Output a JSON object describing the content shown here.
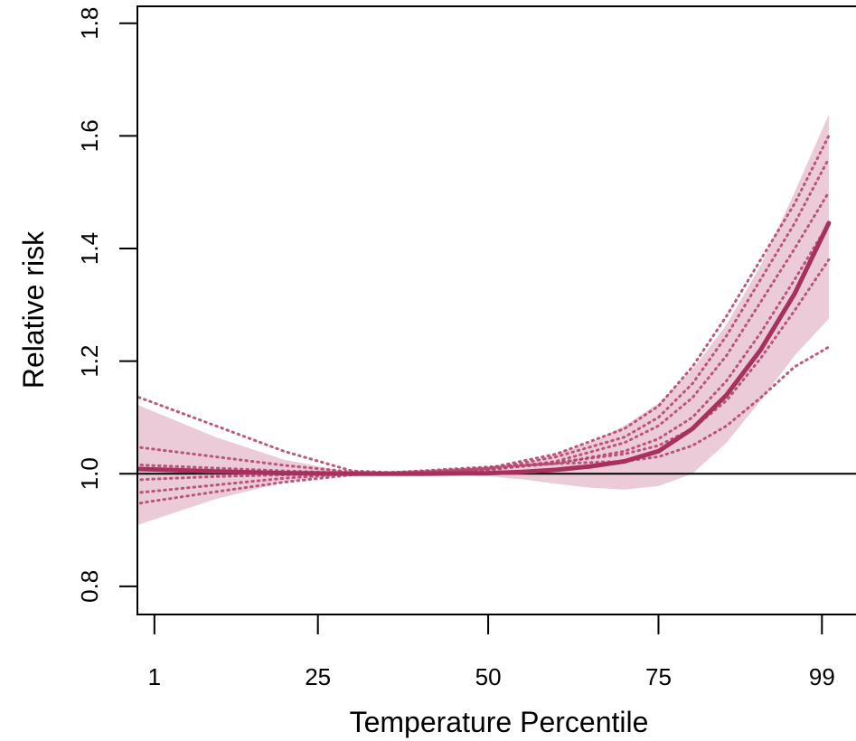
{
  "chart_data": {
    "type": "line",
    "title": "",
    "xlabel": "Temperature Percentile",
    "ylabel": "Relative risk",
    "xlim": [
      -1.5,
      104
    ],
    "ylim": [
      0.75,
      1.83
    ],
    "xticks": [
      1,
      25,
      50,
      75,
      99
    ],
    "yticks": [
      0.8,
      1.0,
      1.2,
      1.4,
      1.6,
      1.8
    ],
    "ytick_labels": [
      "0.8",
      "1.0",
      "1.2",
      "1.4",
      "1.6",
      "1.8"
    ],
    "reference_line": 1.0,
    "colors": {
      "main": "#a8305e",
      "band": "#e9c2d2",
      "dotted": "#b5476f",
      "reference": "#000000"
    },
    "series": [
      {
        "style": "solid",
        "x": [
          -7,
          0,
          10,
          20,
          30,
          40,
          50,
          55,
          60,
          65,
          70,
          75,
          80,
          85,
          90,
          95,
          100
        ],
        "y": [
          1.01,
          1.008,
          1.004,
          1.001,
          1.0,
          1.0,
          1.001,
          1.003,
          1.007,
          1.013,
          1.022,
          1.04,
          1.08,
          1.14,
          1.22,
          1.32,
          1.445
        ]
      }
    ],
    "confidence_band": {
      "x": [
        -7,
        0,
        10,
        20,
        30,
        40,
        50,
        55,
        60,
        65,
        70,
        75,
        80,
        85,
        90,
        95,
        100
      ],
      "lower": [
        0.885,
        0.915,
        0.955,
        0.985,
        1.0,
        1.0,
        0.995,
        0.99,
        0.982,
        0.975,
        0.972,
        0.978,
        1.0,
        1.055,
        1.13,
        1.21,
        1.275
      ],
      "upper": [
        1.15,
        1.115,
        1.065,
        1.025,
        1.002,
        1.005,
        1.012,
        1.018,
        1.035,
        1.055,
        1.085,
        1.125,
        1.185,
        1.265,
        1.37,
        1.5,
        1.638
      ]
    },
    "dotted_series": [
      {
        "x": [
          -7,
          0,
          10,
          20,
          30,
          40,
          50,
          60,
          70,
          75,
          80,
          85,
          90,
          95,
          100
        ],
        "y": [
          1.16,
          1.13,
          1.085,
          1.04,
          1.005,
          1.0,
          1.01,
          1.035,
          1.08,
          1.12,
          1.19,
          1.28,
          1.38,
          1.48,
          1.6
        ]
      },
      {
        "x": [
          -7,
          0,
          10,
          20,
          30,
          40,
          50,
          60,
          70,
          75,
          80,
          85,
          90,
          95,
          100
        ],
        "y": [
          1.055,
          1.045,
          1.03,
          1.015,
          1.003,
          1.0,
          1.008,
          1.03,
          1.065,
          1.1,
          1.16,
          1.245,
          1.345,
          1.445,
          1.56
        ]
      },
      {
        "x": [
          -7,
          0,
          10,
          20,
          30,
          40,
          50,
          60,
          70,
          75,
          80,
          85,
          90,
          95,
          100
        ],
        "y": [
          1.02,
          1.015,
          1.01,
          1.005,
          1.001,
          1.0,
          1.006,
          1.022,
          1.055,
          1.085,
          1.135,
          1.21,
          1.305,
          1.4,
          1.5
        ]
      },
      {
        "x": [
          -7,
          0,
          10,
          20,
          30,
          40,
          50,
          60,
          70,
          75,
          80,
          85,
          90,
          95,
          100
        ],
        "y": [
          0.985,
          0.99,
          0.995,
          0.998,
          1.0,
          1.002,
          1.008,
          1.018,
          1.04,
          1.062,
          1.1,
          1.165,
          1.25,
          1.345,
          1.445
        ]
      },
      {
        "x": [
          -7,
          0,
          10,
          20,
          30,
          40,
          50,
          60,
          70,
          75,
          80,
          85,
          90,
          95,
          100
        ],
        "y": [
          0.96,
          0.968,
          0.98,
          0.992,
          1.0,
          1.004,
          1.01,
          1.02,
          1.035,
          1.05,
          1.08,
          1.13,
          1.205,
          1.29,
          1.38
        ]
      },
      {
        "x": [
          -7,
          0,
          10,
          20,
          30,
          40,
          50,
          60,
          70,
          75,
          80,
          85,
          90,
          95,
          100
        ],
        "y": [
          0.935,
          0.95,
          0.968,
          0.985,
          0.998,
          1.005,
          1.012,
          1.018,
          1.022,
          1.03,
          1.05,
          1.085,
          1.135,
          1.19,
          1.225
        ]
      }
    ]
  }
}
